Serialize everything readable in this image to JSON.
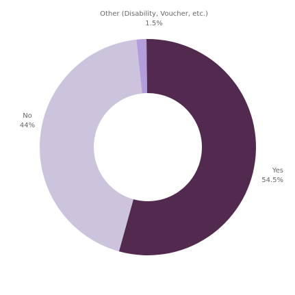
{
  "chart_data": {
    "type": "pie",
    "donut": true,
    "slices": [
      {
        "label": "Yes",
        "value": 54.5,
        "value_label": "54.5%",
        "color": "#532a4f"
      },
      {
        "label": "No",
        "value": 44,
        "value_label": "44%",
        "color": "#cbc4dc"
      },
      {
        "label": "Other (Disability, Voucher, etc.)",
        "value": 1.5,
        "value_label": "1.5%",
        "color": "#b39ddb"
      }
    ],
    "legend": "none",
    "background_color": "#ffffff"
  }
}
